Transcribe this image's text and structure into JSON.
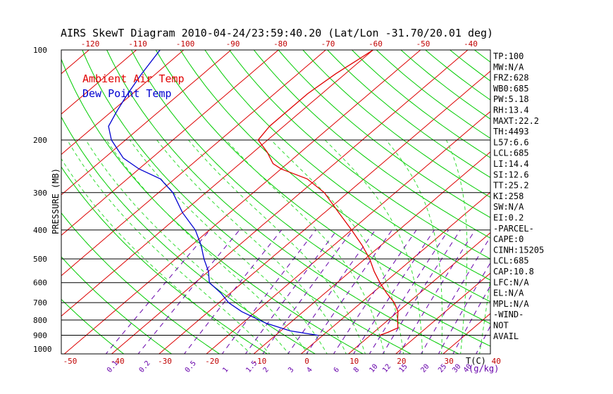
{
  "title": "AIRS SkewT Diagram 2010-04-24/23:59:40.20 (Lat/Lon -31.70/20.01 deg)",
  "legend": [
    {
      "label": "Ambient Air Temp",
      "color": "#e00000"
    },
    {
      "label": "Dew Point Temp",
      "color": "#0000d0"
    }
  ],
  "colors": {
    "grid": "#000000",
    "isotherm": "#dd0000",
    "adiabat": "#00cc00",
    "moist_adiabat": "#33dd33",
    "mixing_ratio": "#6600aa",
    "temp": "#e00000",
    "dew": "#0000d0"
  },
  "chart_data": {
    "type": "line",
    "ylabel": "PRESSURE (MB)",
    "y_scale": "log",
    "y_axis_direction": "reversed",
    "ylim": [
      1000,
      100
    ],
    "pressure_ticks": [
      100,
      200,
      300,
      400,
      500,
      600,
      700,
      800,
      900,
      1000
    ],
    "bottom_temp_ticks": [
      -50,
      -40,
      -30,
      -20,
      -10,
      0,
      10,
      20,
      30,
      40
    ],
    "top_temp_ticks": [
      -120,
      -110,
      -100,
      -90,
      -80,
      -70,
      -60,
      -50,
      -40
    ],
    "x_unit_label": "T(C)",
    "mixing_ratio_unit_label": "(g/kg)",
    "mixing_ratio_ticks": [
      "0.1",
      "0.2",
      "0.5",
      "1",
      "1.5",
      "2",
      "3",
      "4",
      "6",
      "8",
      "10",
      "12",
      "15",
      "20",
      "25",
      "30",
      "40"
    ],
    "series": [
      {
        "name": "Ambient Air Temp",
        "points": [
          [
            900,
            12
          ],
          [
            880,
            13
          ],
          [
            850,
            14
          ],
          [
            800,
            12
          ],
          [
            750,
            10
          ],
          [
            700,
            7
          ],
          [
            650,
            3
          ],
          [
            600,
            -1
          ],
          [
            550,
            -5
          ],
          [
            500,
            -9
          ],
          [
            450,
            -14
          ],
          [
            400,
            -20
          ],
          [
            350,
            -27
          ],
          [
            300,
            -35
          ],
          [
            270,
            -42
          ],
          [
            250,
            -50
          ],
          [
            240,
            -53
          ],
          [
            220,
            -57
          ],
          [
            200,
            -62
          ],
          [
            180,
            -63
          ],
          [
            160,
            -63
          ],
          [
            140,
            -63
          ],
          [
            120,
            -62
          ],
          [
            110,
            -61
          ],
          [
            100,
            -60
          ]
        ]
      },
      {
        "name": "Dew Point Temp",
        "points": [
          [
            900,
            -1
          ],
          [
            870,
            -8
          ],
          [
            820,
            -15
          ],
          [
            750,
            -23
          ],
          [
            700,
            -28
          ],
          [
            650,
            -32
          ],
          [
            600,
            -37
          ],
          [
            550,
            -40
          ],
          [
            500,
            -44
          ],
          [
            450,
            -48
          ],
          [
            400,
            -53
          ],
          [
            350,
            -60
          ],
          [
            300,
            -67
          ],
          [
            270,
            -73
          ],
          [
            250,
            -80
          ],
          [
            230,
            -86
          ],
          [
            200,
            -93
          ],
          [
            180,
            -97
          ],
          [
            160,
            -99
          ],
          [
            140,
            -101
          ],
          [
            120,
            -103
          ],
          [
            100,
            -105
          ]
        ]
      }
    ]
  },
  "indices": [
    "TP:100",
    "MW:N/A",
    "FRZ:628",
    "WB0:685",
    "PW:5.18",
    "RH:13.4",
    "MAXT:22.2",
    "TH:4493",
    "L57:6.6",
    "LCL:685",
    "LI:14.4",
    "SI:12.6",
    "TT:25.2",
    "KI:258",
    "SW:N/A",
    "EI:0.2",
    "-PARCEL-",
    "CAPE:0",
    "CINH:15205",
    "LCL:685",
    "CAP:10.8",
    "LFC:N/A",
    "EL:N/A",
    "MPL:N/A",
    "-WIND-",
    "NOT",
    "AVAIL"
  ]
}
